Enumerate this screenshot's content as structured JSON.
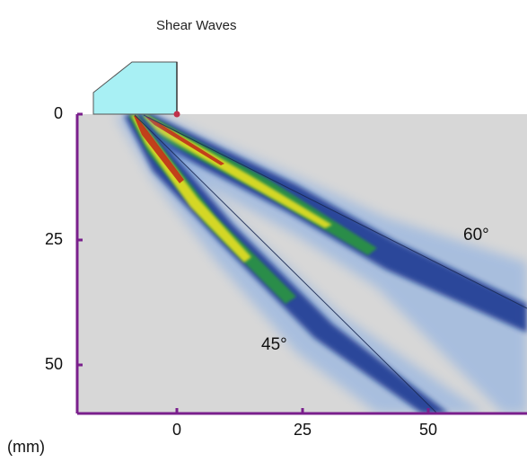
{
  "title": "Shear Waves",
  "unit_label": "(mm)",
  "y_ticks": [
    "0",
    "25",
    "50"
  ],
  "x_ticks": [
    "0",
    "25",
    "50"
  ],
  "beams": [
    {
      "angle_label": "45°",
      "angle_deg": 45
    },
    {
      "angle_label": "60°",
      "angle_deg": 60
    }
  ],
  "colors": {
    "test_block": "#d7d7d7",
    "wedge": "#a8f0f4",
    "axis": "#7a1f8c",
    "beam_outer": "#0a2a8a",
    "beam_mid": "#2a9a3a",
    "beam_core": "#e8e020",
    "beam_peak": "#c0301a"
  }
}
